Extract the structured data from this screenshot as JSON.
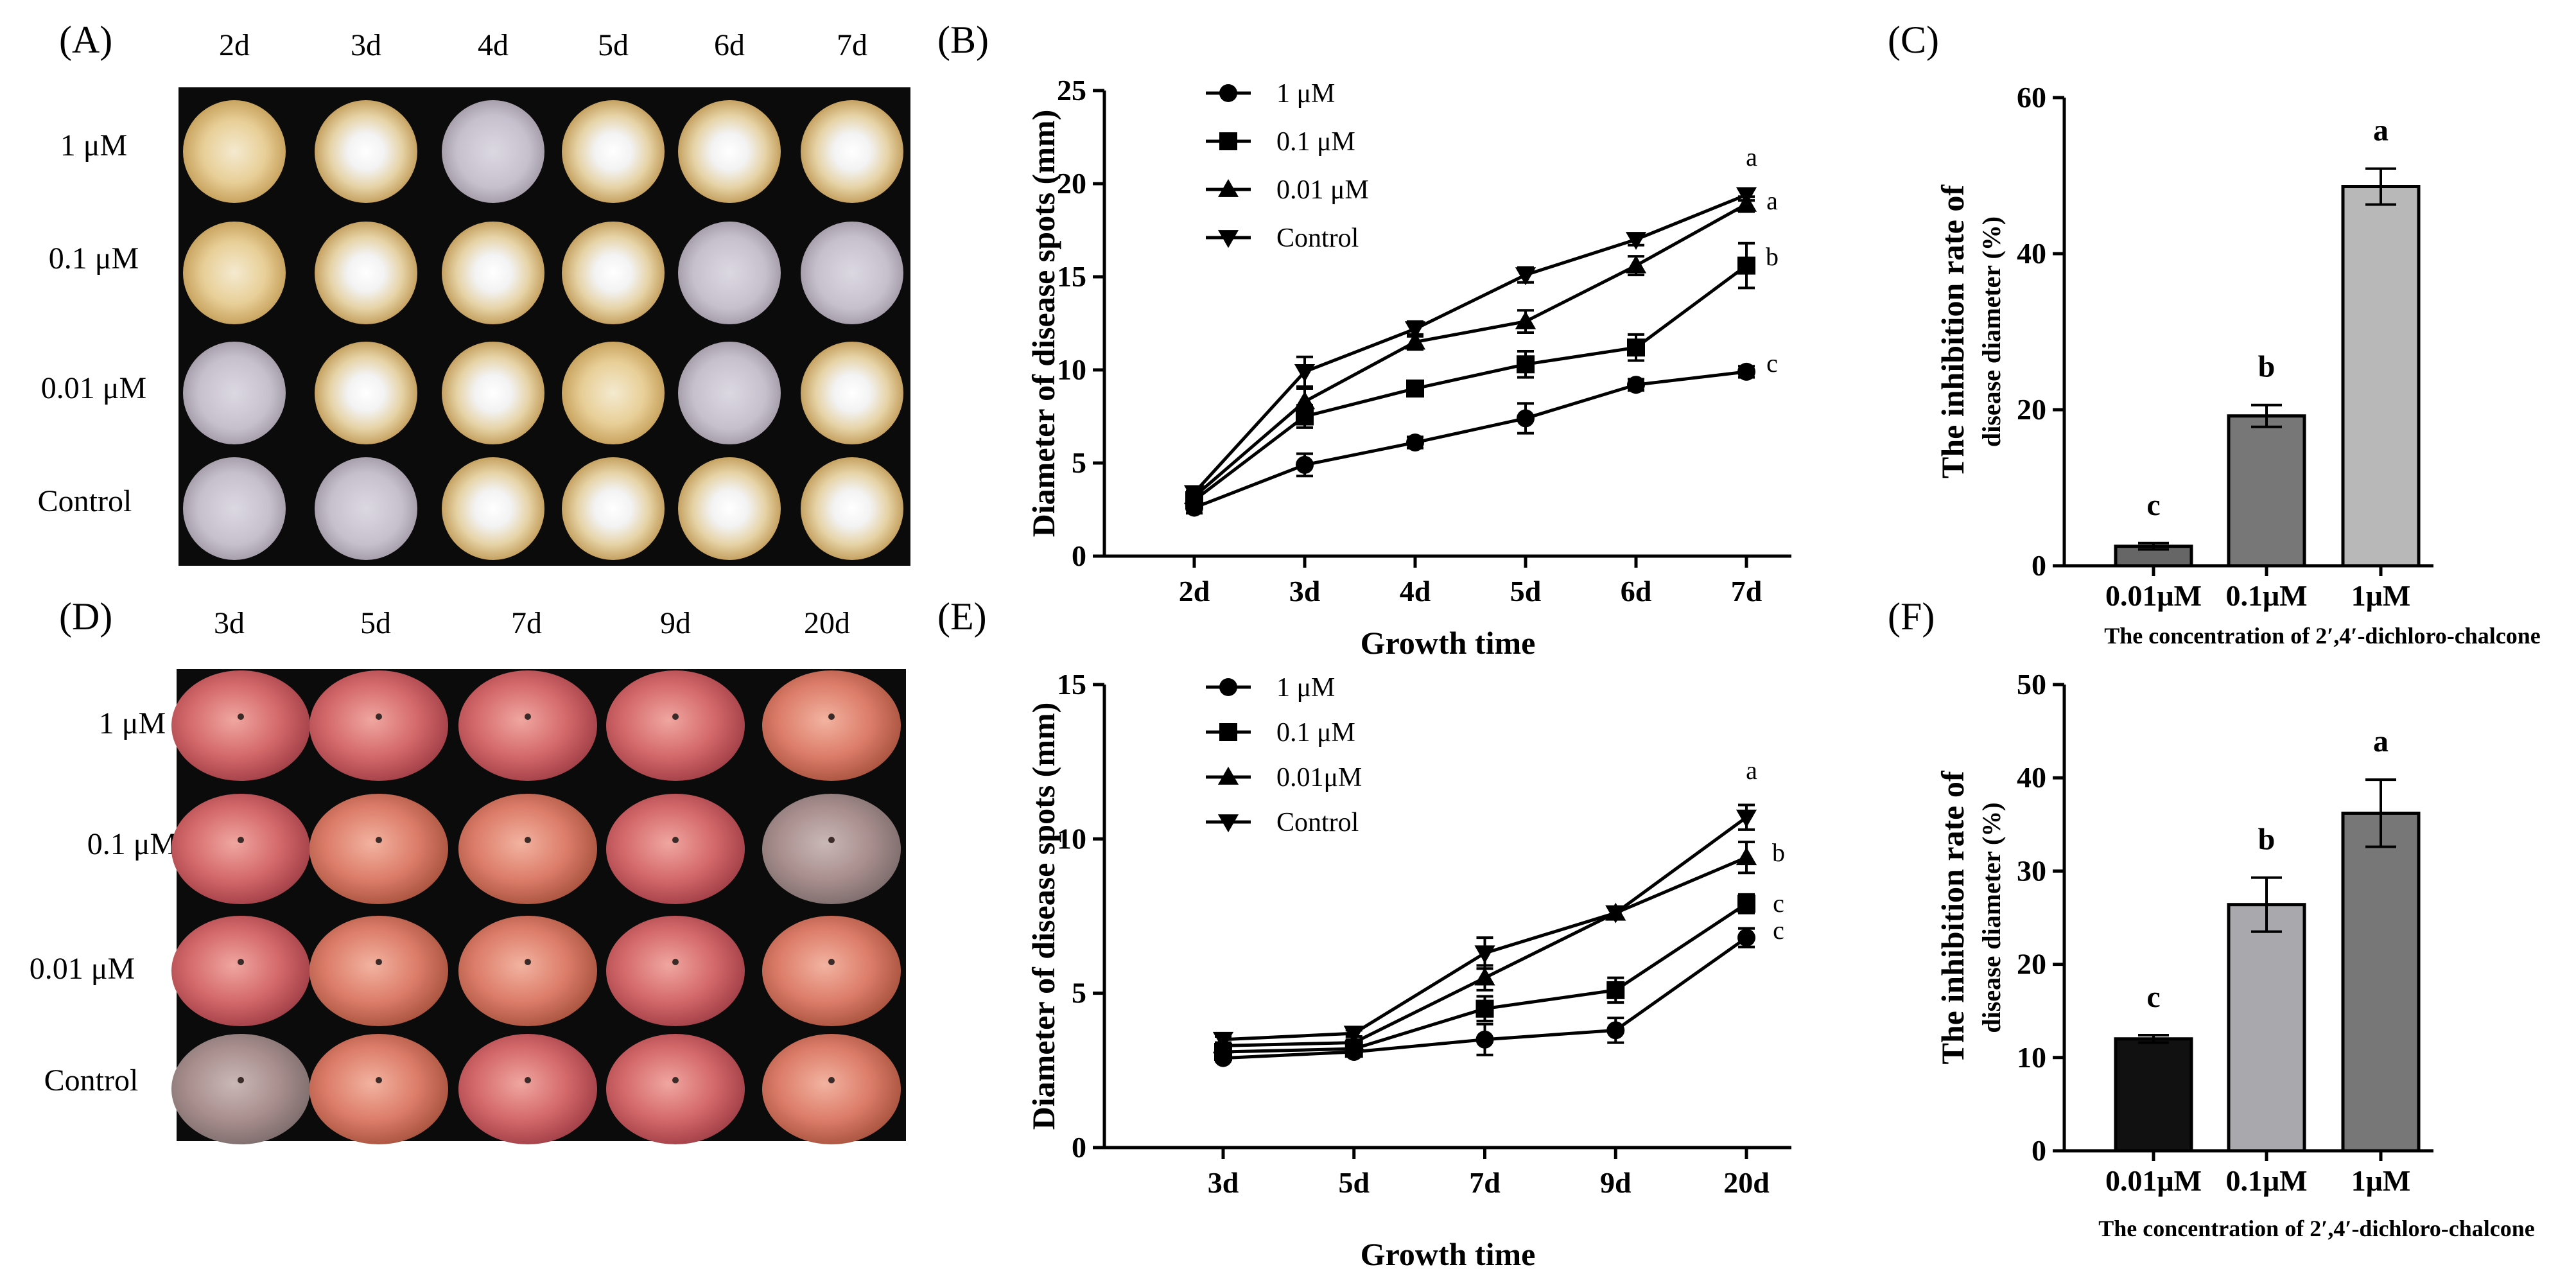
{
  "panels": {
    "A": {
      "letter": "(A)",
      "columns": [
        "2d",
        "3d",
        "4d",
        "5d",
        "6d",
        "7d"
      ],
      "rows": [
        "1 μM",
        "0.1 μM",
        "0.01 μM",
        "Control"
      ]
    },
    "D": {
      "letter": "(D)",
      "columns": [
        "3d",
        "5d",
        "7d",
        "9d",
        "20d"
      ],
      "rows": [
        "1 μM",
        "0.1 μM",
        "0.01 μM",
        "Control"
      ]
    },
    "B": {
      "letter": "(B)"
    },
    "C": {
      "letter": "(C)"
    },
    "E": {
      "letter": "(E)"
    },
    "F": {
      "letter": "(F)"
    }
  },
  "chart_data": [
    {
      "id": "B",
      "type": "line",
      "categories": [
        "2d",
        "3d",
        "4d",
        "5d",
        "6d",
        "7d"
      ],
      "xlabel": "Growth time",
      "ylabel": "Diameter of disease spots (mm)",
      "ylim": [
        0,
        25
      ],
      "yticks": [
        0,
        5,
        10,
        15,
        20,
        25
      ],
      "series": [
        {
          "name": "1 μM",
          "marker": "circle",
          "values": [
            2.6,
            4.9,
            6.1,
            7.4,
            9.2,
            9.9
          ],
          "errors": [
            0.3,
            0.6,
            0.3,
            0.8,
            0.3,
            0.3
          ],
          "sig": "c"
        },
        {
          "name": "0.1 μM",
          "marker": "square",
          "values": [
            3.0,
            7.5,
            9.0,
            10.3,
            11.2,
            15.6
          ],
          "errors": [
            0.3,
            0.6,
            0.3,
            0.7,
            0.7,
            1.2
          ],
          "sig": "b"
        },
        {
          "name": "0.01 μM",
          "marker": "triangle-up",
          "values": [
            3.2,
            8.3,
            11.5,
            12.6,
            15.6,
            18.9
          ],
          "errors": [
            0.3,
            0.7,
            0.4,
            0.6,
            0.5,
            0.4
          ],
          "sig": "a"
        },
        {
          "name": "Control",
          "marker": "triangle-down",
          "values": [
            3.4,
            9.9,
            12.2,
            15.1,
            17.0,
            19.4
          ],
          "errors": [
            0.3,
            0.8,
            0.4,
            0.4,
            0.3,
            0.3
          ],
          "sig": "a"
        }
      ]
    },
    {
      "id": "C",
      "type": "bar",
      "categories": [
        "0.01μM",
        "0.1μM",
        "1μM"
      ],
      "values": [
        2.5,
        19.2,
        48.6
      ],
      "errors": [
        0.4,
        1.4,
        2.3
      ],
      "sig": [
        "c",
        "b",
        "a"
      ],
      "colors": [
        "#666666",
        "#777777",
        "#b8b8b8"
      ],
      "ylabel_line1": "The inhibition rate of",
      "ylabel_line2": "disease diameter (%)",
      "xlabel": "The concentration of 2′,4′-dichloro-chalcone",
      "ylim": [
        0,
        60
      ],
      "yticks": [
        0,
        20,
        40,
        60
      ]
    },
    {
      "id": "E",
      "type": "line",
      "categories": [
        "3d",
        "5d",
        "7d",
        "9d",
        "20d"
      ],
      "xlabel": "Growth time",
      "ylabel": "Diameter of disease spots (mm)",
      "ylim": [
        0,
        15
      ],
      "yticks": [
        0,
        5,
        10,
        15
      ],
      "series": [
        {
          "name": "1 μM",
          "marker": "circle",
          "values": [
            2.9,
            3.1,
            3.5,
            3.8,
            6.8
          ],
          "errors": [
            0.1,
            0.1,
            0.5,
            0.4,
            0.3
          ],
          "sig": "c"
        },
        {
          "name": "0.1 μM",
          "marker": "square",
          "values": [
            3.1,
            3.2,
            4.5,
            5.1,
            7.9
          ],
          "errors": [
            0.1,
            0.1,
            0.4,
            0.4,
            0.3
          ],
          "sig": "c"
        },
        {
          "name": "0.01μM",
          "marker": "triangle-up",
          "values": [
            3.3,
            3.4,
            5.5,
            7.6,
            9.4
          ],
          "errors": [
            0.1,
            0.1,
            0.4,
            0.2,
            0.5
          ],
          "sig": "b"
        },
        {
          "name": "Control",
          "marker": "triangle-down",
          "values": [
            3.5,
            3.7,
            6.3,
            7.6,
            10.7
          ],
          "errors": [
            0.1,
            0.1,
            0.5,
            0.2,
            0.4
          ],
          "sig": "a"
        }
      ]
    },
    {
      "id": "F",
      "type": "bar",
      "categories": [
        "0.01μM",
        "0.1μM",
        "1μM"
      ],
      "values": [
        12.0,
        26.4,
        36.2
      ],
      "errors": [
        0.4,
        2.9,
        3.6
      ],
      "sig": [
        "c",
        "b",
        "a"
      ],
      "colors": [
        "#111111",
        "#a9a9ad",
        "#777777"
      ],
      "ylabel_line1": "The inhibition rate of",
      "ylabel_line2": "disease diameter (%)",
      "xlabel": "The concentration of 2′,4′-dichloro-chalcone",
      "ylim": [
        0,
        50
      ],
      "yticks": [
        0,
        10,
        20,
        30,
        40,
        50
      ]
    }
  ]
}
